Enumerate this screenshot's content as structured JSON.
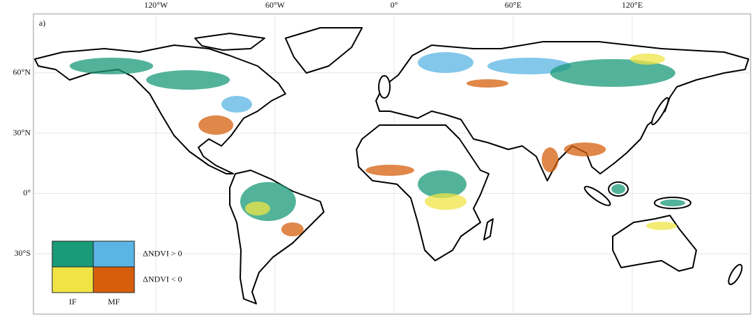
{
  "panel_label": "a)",
  "map": {
    "lon_range": [
      -180,
      180
    ],
    "lat_range": [
      -60,
      90
    ],
    "lon_ticks": [
      {
        "value": -120,
        "label": "120°W"
      },
      {
        "value": -60,
        "label": "60°W"
      },
      {
        "value": 0,
        "label": "0°"
      },
      {
        "value": 60,
        "label": "60°E"
      },
      {
        "value": 120,
        "label": "120°E"
      }
    ],
    "lat_ticks": [
      {
        "value": 60,
        "label": "60°N"
      },
      {
        "value": 30,
        "label": "30°N"
      },
      {
        "value": 0,
        "label": "0°"
      },
      {
        "value": -30,
        "label": "30°S"
      }
    ],
    "grid": true
  },
  "legend": {
    "colors": [
      [
        "#1a9a78",
        "#5ab4e4"
      ],
      [
        "#efe444",
        "#d65f0e"
      ]
    ],
    "row_labels": [
      "ΔNDVI > 0",
      "ΔNDVI < 0"
    ],
    "col_labels": [
      "IF",
      "MF"
    ]
  }
}
